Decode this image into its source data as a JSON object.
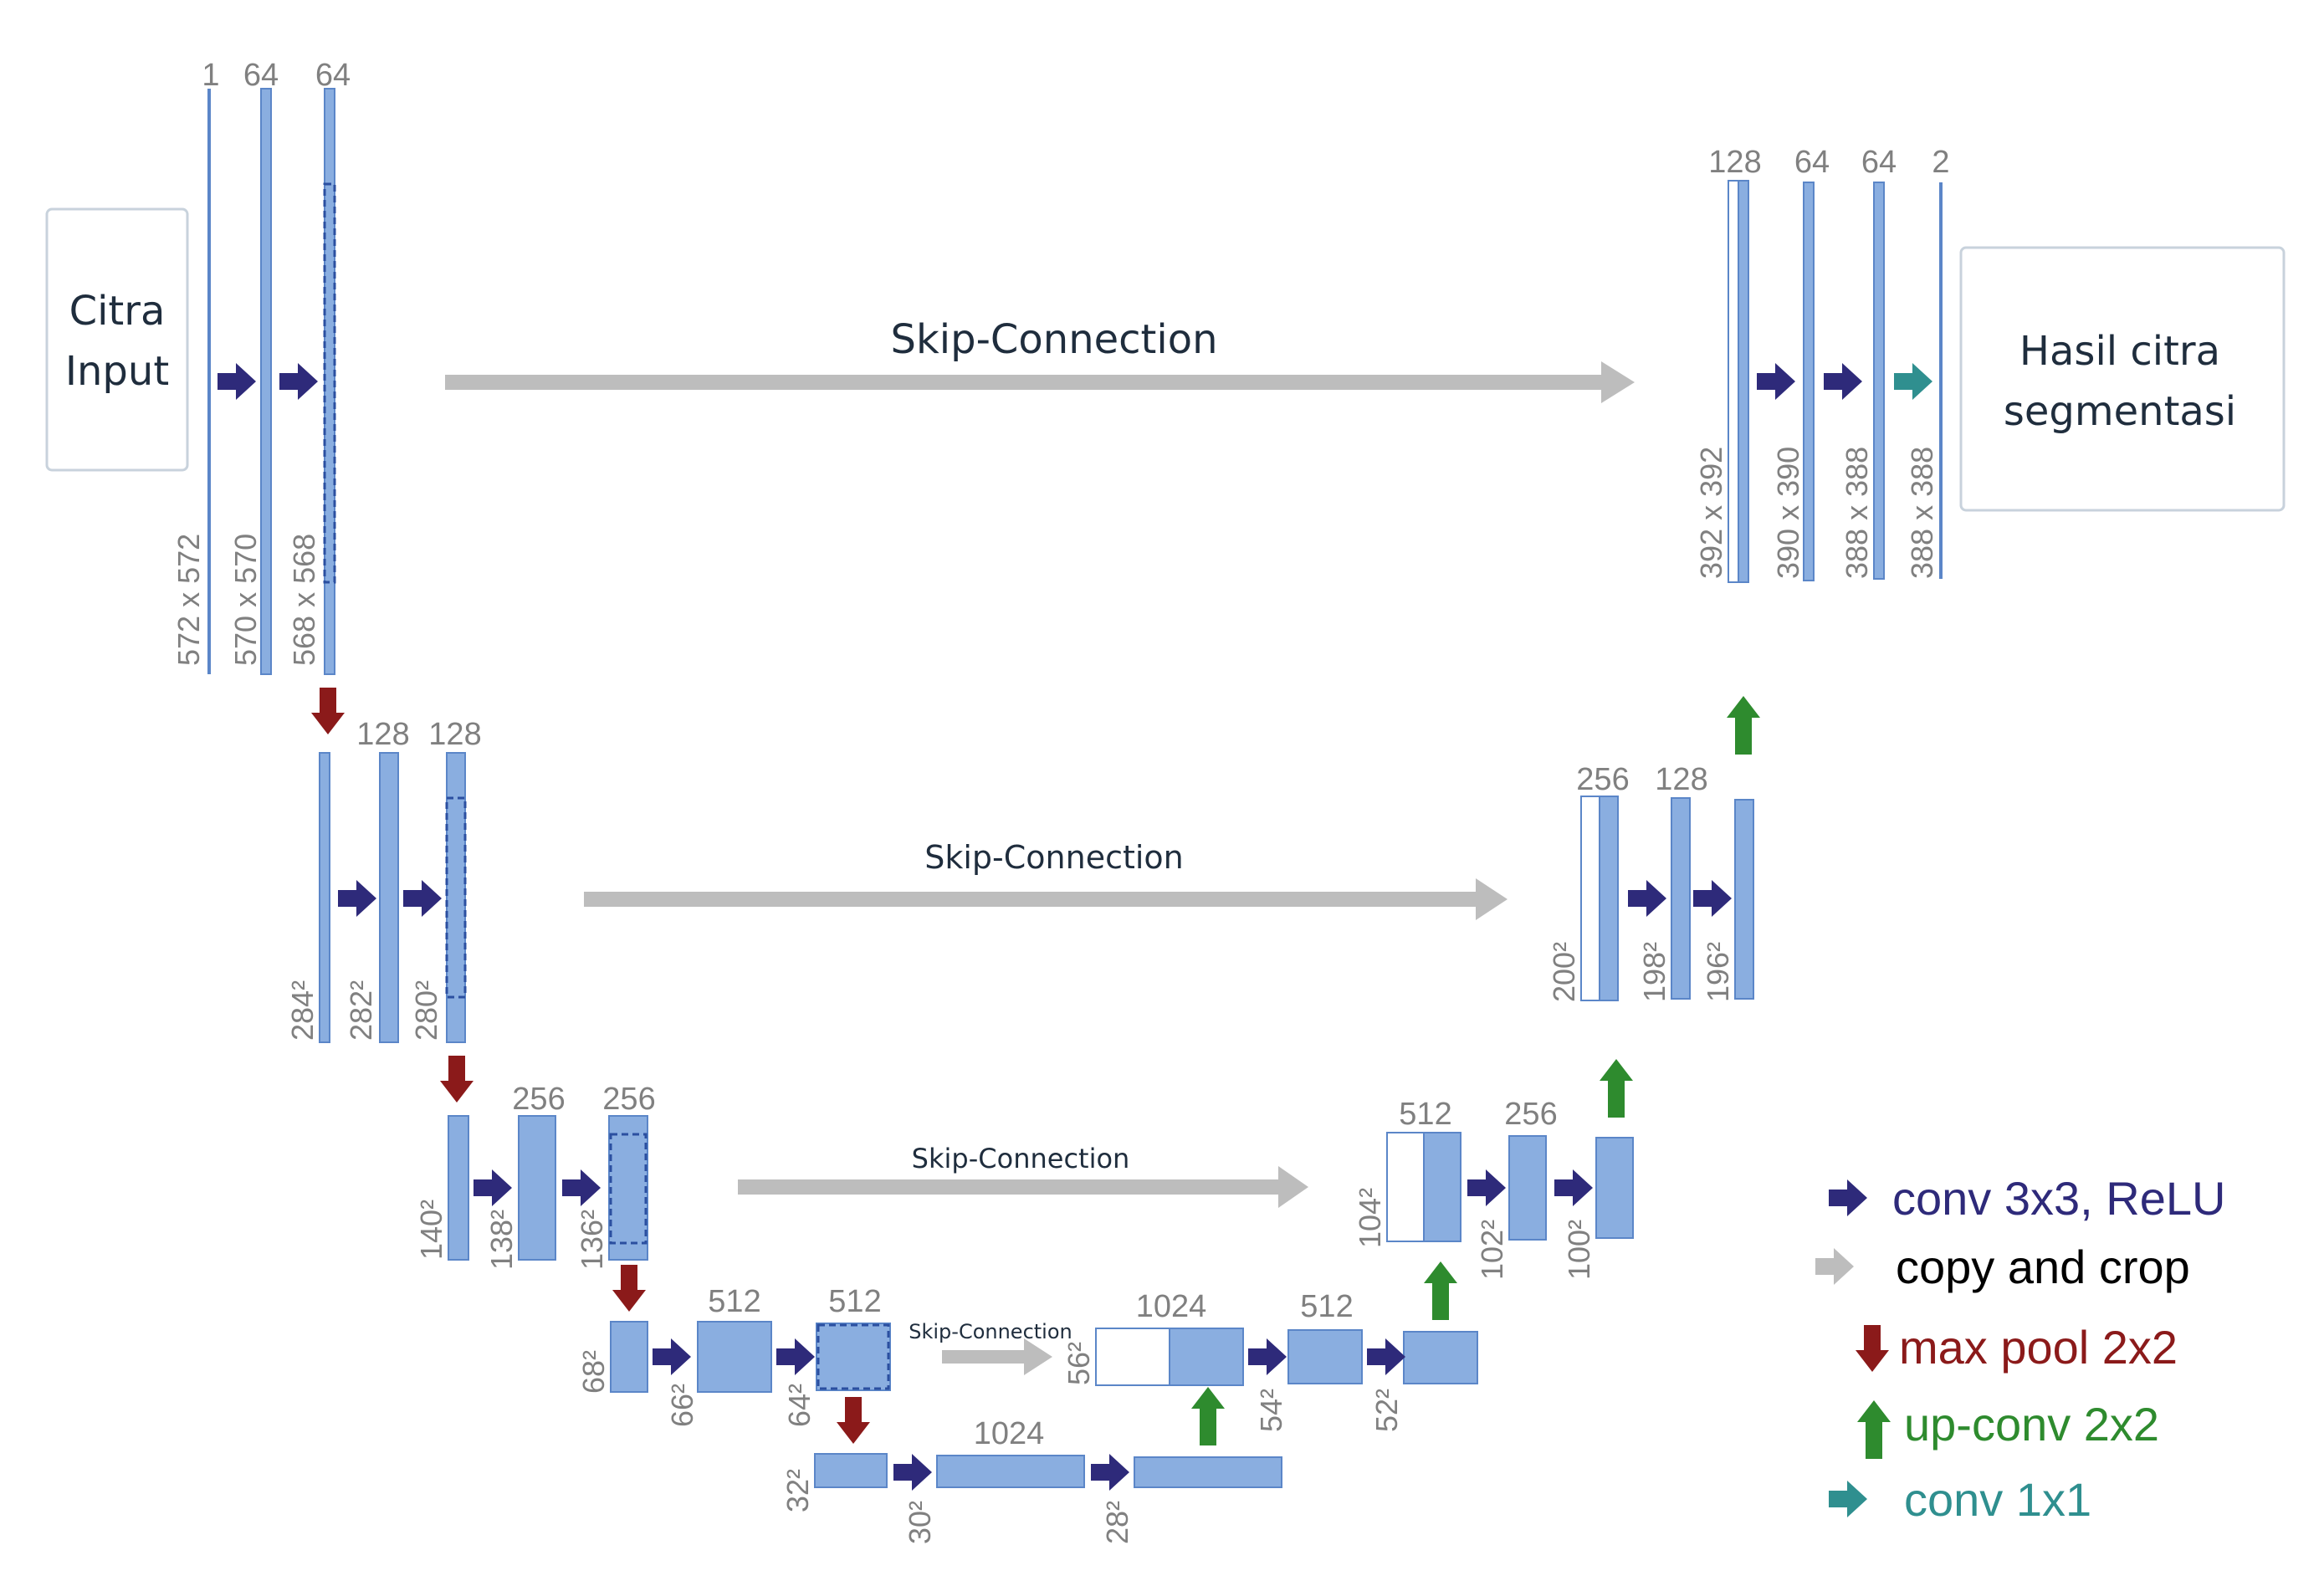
{
  "input_box": {
    "line1": "Citra",
    "line2": "Input"
  },
  "output_box": {
    "line1": "Hasil citra",
    "line2": "segmentasi"
  },
  "skip_labels": [
    "Skip-Connection",
    "Skip-Connection",
    "Skip-Connection",
    "Skip-Connection"
  ],
  "channels": {
    "l1": [
      "1",
      "64",
      "64"
    ],
    "l2": [
      "128",
      "128"
    ],
    "l3": [
      "256",
      "256"
    ],
    "l4": [
      "512",
      "512"
    ],
    "l5": [
      "1024"
    ],
    "r5": [
      "1024"
    ],
    "r4": [
      "512"
    ],
    "r3": [
      "512",
      "256"
    ],
    "r2": [
      "256",
      "128"
    ],
    "r1": [
      "128",
      "64",
      "64",
      "2"
    ]
  },
  "sizes": {
    "l1": [
      "572 x 572",
      "570 x 570",
      "568 x 568"
    ],
    "l2": [
      "284²",
      "282²",
      "280²"
    ],
    "l3": [
      "140²",
      "138²",
      "136²"
    ],
    "l4": [
      "68²",
      "66²",
      "64²"
    ],
    "l5": [
      "32²",
      "30²",
      "28²"
    ],
    "r4": [
      "56²",
      "54²",
      "52²"
    ],
    "r3": [
      "104²",
      "102²",
      "100²"
    ],
    "r2": [
      "200²",
      "198²",
      "196²"
    ],
    "r1": [
      "392 x 392",
      "390 x 390",
      "388 x 388",
      "388 x 388"
    ]
  },
  "legend": [
    {
      "label": "conv 3x3, ReLU",
      "color": "#2e2a7a",
      "icon": "arrow-right-icon"
    },
    {
      "label": "copy and crop",
      "color": "#000000",
      "arrow_color": "#bdbdbd",
      "icon": "arrow-right-icon"
    },
    {
      "label": "max pool 2x2",
      "color": "#8b1a1a",
      "icon": "arrow-down-icon"
    },
    {
      "label": "up-conv 2x2",
      "color": "#2e8b2e",
      "icon": "arrow-up-icon"
    },
    {
      "label": "conv 1x1",
      "color": "#2f8f8f",
      "icon": "arrow-right-icon"
    }
  ],
  "colors": {
    "block": "#8aaee0",
    "block_stroke": "#5b86c8",
    "conv": "#2e2a7a",
    "skip": "#bdbdbd",
    "pool": "#8b1a1a",
    "up": "#2e8b2e",
    "conv1x1": "#2f8f8f"
  }
}
